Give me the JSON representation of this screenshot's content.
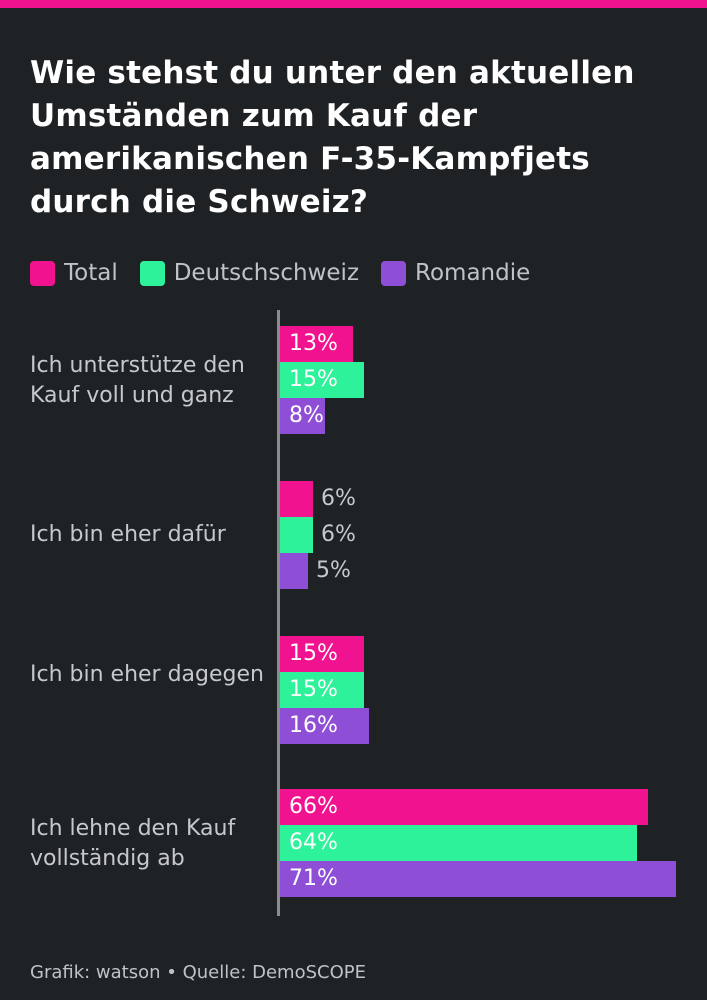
{
  "title": "Wie stehst du unter den aktuellen Umständen zum Kauf der amerikanischen F-35-Kampfjets durch die Schweiz?",
  "legend": [
    {
      "label": "Total",
      "color": "#f0128e"
    },
    {
      "label": "Deutschschweiz",
      "color": "#2ef29a"
    },
    {
      "label": "Romandie",
      "color": "#8e4fd6"
    }
  ],
  "footer": "Grafik: watson • Quelle: DemoSCOPE",
  "chart_data": {
    "type": "bar",
    "orientation": "horizontal",
    "title": "Wie stehst du unter den aktuellen Umständen zum Kauf der amerikanischen F-35-Kampfjets durch die Schweiz?",
    "categories": [
      "Ich unterstütze den Kauf voll und ganz",
      "Ich bin eher dafür",
      "Ich bin eher dagegen",
      "Ich lehne den Kauf vollständig ab"
    ],
    "series": [
      {
        "name": "Total",
        "values": [
          13,
          6,
          15,
          66
        ],
        "labels": [
          "13%",
          "6%",
          "15%",
          "66%"
        ]
      },
      {
        "name": "Deutschschweiz",
        "values": [
          15,
          6,
          15,
          64
        ],
        "labels": [
          "15%",
          "6%",
          "15%",
          "64%"
        ]
      },
      {
        "name": "Romandie",
        "values": [
          8,
          5,
          16,
          71
        ],
        "labels": [
          "8%",
          "5%",
          "16%",
          "71%"
        ]
      }
    ],
    "unit": "%",
    "xlim": [
      0,
      71
    ],
    "grid": false,
    "legend": "top-left"
  }
}
